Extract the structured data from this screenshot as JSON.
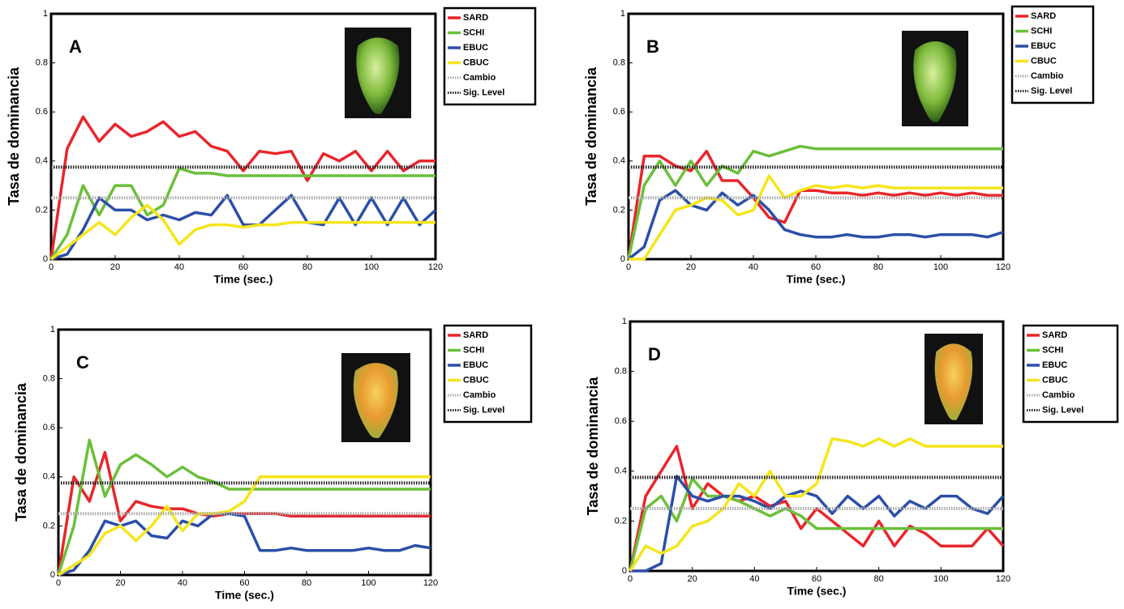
{
  "chart_data": [
    {
      "type": "line",
      "title": "A",
      "x_label": "Time (sec.)",
      "y_label": "Tasa de dominancia",
      "x": [
        0,
        5,
        10,
        15,
        20,
        25,
        30,
        35,
        40,
        45,
        50,
        55,
        60,
        65,
        70,
        75,
        80,
        85,
        90,
        95,
        100,
        105,
        110,
        115,
        120
      ],
      "xlim": [
        0,
        120
      ],
      "xticks": [
        0,
        20,
        40,
        60,
        80,
        100,
        120
      ],
      "ylim": [
        0,
        1
      ],
      "yticks": [
        0,
        0.2,
        0.4,
        0.6,
        0.8,
        1
      ],
      "legend": "outside-right",
      "series": [
        {
          "name": "SARD",
          "color": "#e8262b",
          "style": "solid",
          "values": [
            0,
            0.45,
            0.58,
            0.48,
            0.55,
            0.5,
            0.52,
            0.56,
            0.5,
            0.52,
            0.46,
            0.44,
            0.36,
            0.44,
            0.43,
            0.44,
            0.32,
            0.43,
            0.4,
            0.44,
            0.36,
            0.44,
            0.36,
            0.4,
            0.4
          ]
        },
        {
          "name": "SCHI",
          "color": "#6bbf3a",
          "style": "solid",
          "values": [
            0,
            0.1,
            0.3,
            0.18,
            0.3,
            0.3,
            0.18,
            0.22,
            0.37,
            0.35,
            0.35,
            0.34,
            0.34,
            0.34,
            0.34,
            0.34,
            0.34,
            0.34,
            0.34,
            0.34,
            0.34,
            0.34,
            0.34,
            0.34,
            0.34
          ]
        },
        {
          "name": "EBUC",
          "color": "#2b4fa8",
          "style": "solid",
          "values": [
            0,
            0.02,
            0.12,
            0.25,
            0.2,
            0.2,
            0.16,
            0.18,
            0.16,
            0.19,
            0.18,
            0.26,
            0.14,
            0.14,
            0.2,
            0.26,
            0.15,
            0.14,
            0.25,
            0.14,
            0.25,
            0.14,
            0.25,
            0.14,
            0.2
          ]
        },
        {
          "name": "CBUC",
          "color": "#f5e51b",
          "style": "solid",
          "values": [
            0,
            0.05,
            0.1,
            0.15,
            0.1,
            0.17,
            0.22,
            0.16,
            0.06,
            0.12,
            0.14,
            0.14,
            0.13,
            0.14,
            0.14,
            0.15,
            0.15,
            0.15,
            0.15,
            0.15,
            0.15,
            0.15,
            0.15,
            0.15,
            0.15
          ]
        },
        {
          "name": "Cambio",
          "color": "#aaaaaa",
          "style": "dotted",
          "values": [
            0.25,
            0.25,
            0.25,
            0.25,
            0.25,
            0.25,
            0.25,
            0.25,
            0.25,
            0.25,
            0.25,
            0.25,
            0.25,
            0.25,
            0.25,
            0.25,
            0.25,
            0.25,
            0.25,
            0.25,
            0.25,
            0.25,
            0.25,
            0.25,
            0.25
          ]
        },
        {
          "name": "Sig. Level",
          "color": "#222222",
          "style": "dotted",
          "values": [
            0.375,
            0.375,
            0.375,
            0.375,
            0.375,
            0.375,
            0.375,
            0.375,
            0.375,
            0.375,
            0.375,
            0.375,
            0.375,
            0.375,
            0.375,
            0.375,
            0.375,
            0.375,
            0.375,
            0.375,
            0.375,
            0.375,
            0.375,
            0.375,
            0.375
          ]
        }
      ]
    },
    {
      "type": "line",
      "title": "B",
      "x_label": "Time (sec.)",
      "y_label": "Tasa de dominancia",
      "x": [
        0,
        5,
        10,
        15,
        20,
        25,
        30,
        35,
        40,
        45,
        50,
        55,
        60,
        65,
        70,
        75,
        80,
        85,
        90,
        95,
        100,
        105,
        110,
        115,
        120
      ],
      "xlim": [
        0,
        120
      ],
      "xticks": [
        0,
        20,
        40,
        60,
        80,
        100,
        120
      ],
      "ylim": [
        0,
        1
      ],
      "yticks": [
        0,
        0.2,
        0.4,
        0.6,
        0.8,
        1
      ],
      "legend": "outside-right",
      "series": [
        {
          "name": "SARD",
          "color": "#e8262b",
          "style": "solid",
          "values": [
            0,
            0.42,
            0.42,
            0.38,
            0.36,
            0.44,
            0.32,
            0.32,
            0.25,
            0.17,
            0.15,
            0.28,
            0.28,
            0.27,
            0.27,
            0.26,
            0.27,
            0.26,
            0.27,
            0.26,
            0.27,
            0.26,
            0.27,
            0.26,
            0.26
          ]
        },
        {
          "name": "SCHI",
          "color": "#6bbf3a",
          "style": "solid",
          "values": [
            0,
            0.3,
            0.4,
            0.3,
            0.4,
            0.3,
            0.38,
            0.35,
            0.44,
            0.42,
            0.44,
            0.46,
            0.45,
            0.45,
            0.45,
            0.45,
            0.45,
            0.45,
            0.45,
            0.45,
            0.45,
            0.45,
            0.45,
            0.45,
            0.45
          ]
        },
        {
          "name": "EBUC",
          "color": "#2b4fa8",
          "style": "solid",
          "values": [
            0,
            0.05,
            0.24,
            0.28,
            0.22,
            0.2,
            0.27,
            0.22,
            0.26,
            0.2,
            0.12,
            0.1,
            0.09,
            0.09,
            0.1,
            0.09,
            0.09,
            0.1,
            0.1,
            0.09,
            0.1,
            0.1,
            0.1,
            0.09,
            0.11
          ]
        },
        {
          "name": "CBUC",
          "color": "#f5e51b",
          "style": "solid",
          "values": [
            0,
            0,
            0.1,
            0.2,
            0.22,
            0.25,
            0.24,
            0.18,
            0.2,
            0.34,
            0.25,
            0.28,
            0.3,
            0.29,
            0.3,
            0.29,
            0.3,
            0.29,
            0.29,
            0.29,
            0.29,
            0.29,
            0.29,
            0.29,
            0.29
          ]
        },
        {
          "name": "Cambio",
          "color": "#aaaaaa",
          "style": "dotted",
          "values": [
            0.25,
            0.25,
            0.25,
            0.25,
            0.25,
            0.25,
            0.25,
            0.25,
            0.25,
            0.25,
            0.25,
            0.25,
            0.25,
            0.25,
            0.25,
            0.25,
            0.25,
            0.25,
            0.25,
            0.25,
            0.25,
            0.25,
            0.25,
            0.25,
            0.25
          ]
        },
        {
          "name": "Sig. Level",
          "color": "#222222",
          "style": "dotted",
          "values": [
            0.375,
            0.375,
            0.375,
            0.375,
            0.375,
            0.375,
            0.375,
            0.375,
            0.375,
            0.375,
            0.375,
            0.375,
            0.375,
            0.375,
            0.375,
            0.375,
            0.375,
            0.375,
            0.375,
            0.375,
            0.375,
            0.375,
            0.375,
            0.375,
            0.375
          ]
        }
      ]
    },
    {
      "type": "line",
      "title": "C",
      "x_label": "Time (sec.)",
      "y_label": "Tasa de dominancia",
      "x": [
        0,
        5,
        10,
        15,
        20,
        25,
        30,
        35,
        40,
        45,
        50,
        55,
        60,
        65,
        70,
        75,
        80,
        85,
        90,
        95,
        100,
        105,
        110,
        115,
        120
      ],
      "xlim": [
        0,
        120
      ],
      "xticks": [
        0,
        20,
        40,
        60,
        80,
        100,
        120
      ],
      "ylim": [
        0,
        1
      ],
      "yticks": [
        0,
        0.2,
        0.4,
        0.6,
        0.8,
        1
      ],
      "legend": "outside-right",
      "series": [
        {
          "name": "SARD",
          "color": "#e8262b",
          "style": "solid",
          "values": [
            0,
            0.4,
            0.3,
            0.5,
            0.22,
            0.3,
            0.28,
            0.27,
            0.27,
            0.25,
            0.24,
            0.25,
            0.25,
            0.25,
            0.25,
            0.24,
            0.24,
            0.24,
            0.24,
            0.24,
            0.24,
            0.24,
            0.24,
            0.24,
            0.24
          ]
        },
        {
          "name": "SCHI",
          "color": "#6bbf3a",
          "style": "solid",
          "values": [
            0,
            0.2,
            0.55,
            0.32,
            0.45,
            0.49,
            0.45,
            0.4,
            0.44,
            0.4,
            0.38,
            0.35,
            0.35,
            0.35,
            0.35,
            0.35,
            0.35,
            0.35,
            0.35,
            0.35,
            0.35,
            0.35,
            0.35,
            0.35,
            0.35
          ]
        },
        {
          "name": "EBUC",
          "color": "#2b4fa8",
          "style": "solid",
          "values": [
            0,
            0.02,
            0.1,
            0.22,
            0.2,
            0.22,
            0.16,
            0.15,
            0.22,
            0.2,
            0.25,
            0.25,
            0.24,
            0.1,
            0.1,
            0.11,
            0.1,
            0.1,
            0.1,
            0.1,
            0.11,
            0.1,
            0.1,
            0.12,
            0.11
          ]
        },
        {
          "name": "CBUC",
          "color": "#f5e51b",
          "style": "solid",
          "values": [
            0,
            0.04,
            0.08,
            0.17,
            0.2,
            0.14,
            0.2,
            0.28,
            0.18,
            0.25,
            0.25,
            0.26,
            0.3,
            0.4,
            0.4,
            0.4,
            0.4,
            0.4,
            0.4,
            0.4,
            0.4,
            0.4,
            0.4,
            0.4,
            0.4
          ]
        },
        {
          "name": "Cambio",
          "color": "#aaaaaa",
          "style": "dotted",
          "values": [
            0.25,
            0.25,
            0.25,
            0.25,
            0.25,
            0.25,
            0.25,
            0.25,
            0.25,
            0.25,
            0.25,
            0.25,
            0.25,
            0.25,
            0.25,
            0.25,
            0.25,
            0.25,
            0.25,
            0.25,
            0.25,
            0.25,
            0.25,
            0.25,
            0.25
          ]
        },
        {
          "name": "Sig. Level",
          "color": "#222222",
          "style": "dotted",
          "values": [
            0.375,
            0.375,
            0.375,
            0.375,
            0.375,
            0.375,
            0.375,
            0.375,
            0.375,
            0.375,
            0.375,
            0.375,
            0.375,
            0.375,
            0.375,
            0.375,
            0.375,
            0.375,
            0.375,
            0.375,
            0.375,
            0.375,
            0.375,
            0.375,
            0.375
          ]
        }
      ]
    },
    {
      "type": "line",
      "title": "D",
      "x_label": "Time (sec.)",
      "y_label": "Tasa de dominancia",
      "x": [
        0,
        5,
        10,
        15,
        20,
        25,
        30,
        35,
        40,
        45,
        50,
        55,
        60,
        65,
        70,
        75,
        80,
        85,
        90,
        95,
        100,
        105,
        110,
        115,
        120
      ],
      "xlim": [
        0,
        120
      ],
      "xticks": [
        0,
        20,
        40,
        60,
        80,
        100,
        120
      ],
      "ylim": [
        0,
        1
      ],
      "yticks": [
        0,
        0.2,
        0.4,
        0.6,
        0.8,
        1
      ],
      "legend": "outside-right",
      "series": [
        {
          "name": "SARD",
          "color": "#e8262b",
          "style": "solid",
          "values": [
            0,
            0.3,
            0.4,
            0.5,
            0.25,
            0.35,
            0.3,
            0.28,
            0.3,
            0.26,
            0.28,
            0.17,
            0.25,
            0.2,
            0.15,
            0.1,
            0.2,
            0.1,
            0.18,
            0.15,
            0.1,
            0.1,
            0.1,
            0.17,
            0.1
          ]
        },
        {
          "name": "SCHI",
          "color": "#6bbf3a",
          "style": "solid",
          "values": [
            0,
            0.25,
            0.3,
            0.2,
            0.37,
            0.3,
            0.3,
            0.28,
            0.25,
            0.22,
            0.25,
            0.22,
            0.17,
            0.17,
            0.17,
            0.17,
            0.17,
            0.17,
            0.17,
            0.17,
            0.17,
            0.17,
            0.17,
            0.17,
            0.17
          ]
        },
        {
          "name": "EBUC",
          "color": "#2b4fa8",
          "style": "solid",
          "values": [
            0,
            0,
            0.03,
            0.38,
            0.3,
            0.28,
            0.3,
            0.3,
            0.28,
            0.25,
            0.3,
            0.32,
            0.3,
            0.23,
            0.3,
            0.25,
            0.3,
            0.22,
            0.28,
            0.25,
            0.3,
            0.3,
            0.25,
            0.23,
            0.3
          ]
        },
        {
          "name": "CBUC",
          "color": "#f5e51b",
          "style": "solid",
          "values": [
            0,
            0.1,
            0.07,
            0.1,
            0.18,
            0.2,
            0.25,
            0.35,
            0.3,
            0.4,
            0.3,
            0.3,
            0.35,
            0.53,
            0.52,
            0.5,
            0.53,
            0.5,
            0.53,
            0.5,
            0.5,
            0.5,
            0.5,
            0.5,
            0.5
          ]
        },
        {
          "name": "Cambio",
          "color": "#aaaaaa",
          "style": "dotted",
          "values": [
            0.25,
            0.25,
            0.25,
            0.25,
            0.25,
            0.25,
            0.25,
            0.25,
            0.25,
            0.25,
            0.25,
            0.25,
            0.25,
            0.25,
            0.25,
            0.25,
            0.25,
            0.25,
            0.25,
            0.25,
            0.25,
            0.25,
            0.25,
            0.25,
            0.25
          ]
        },
        {
          "name": "Sig. Level",
          "color": "#222222",
          "style": "dotted",
          "values": [
            0.375,
            0.375,
            0.375,
            0.375,
            0.375,
            0.375,
            0.375,
            0.375,
            0.375,
            0.375,
            0.375,
            0.375,
            0.375,
            0.375,
            0.375,
            0.375,
            0.375,
            0.375,
            0.375,
            0.375,
            0.375,
            0.375,
            0.375,
            0.375,
            0.375
          ]
        }
      ]
    }
  ]
}
